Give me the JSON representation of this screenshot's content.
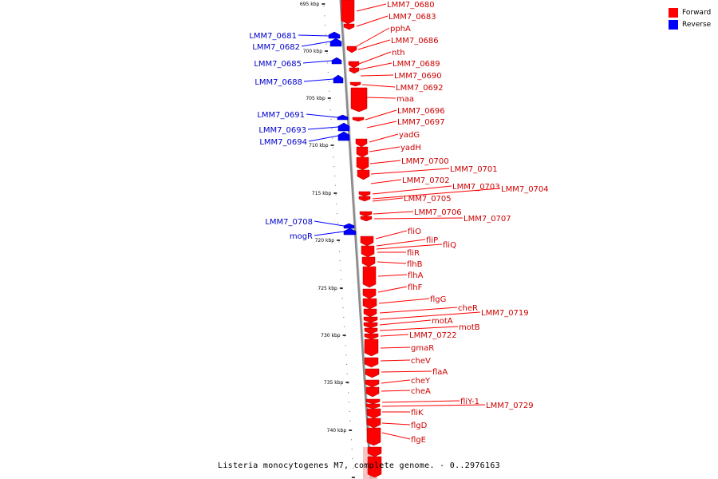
{
  "colors": {
    "forward": "#ff0000",
    "reverse": "#0000ff",
    "axis": "#999999",
    "forward_label": "#cc0000",
    "reverse_label": "#0000cc"
  },
  "legend": [
    {
      "label": "Forward",
      "color": "#ff0000"
    },
    {
      "label": "Reverse",
      "color": "#0000ff"
    }
  ],
  "caption": "Listeria monocytogenes M7, complete genome. - 0..2976163",
  "ticks": [
    "695 kbp",
    "700 kbp",
    "705 kbp",
    "710 kbp",
    "715 kbp",
    "720 kbp",
    "725 kbp",
    "730 kbp",
    "735 kbp",
    "740 kbp"
  ],
  "forward_genes": [
    "LMM7_0680",
    "LMM7_0683",
    "pphA",
    "LMM7_0686",
    "nth",
    "LMM7_0689",
    "LMM7_0690",
    "LMM7_0692",
    "maa",
    "LMM7_0696",
    "LMM7_0697",
    "yadG",
    "yadH",
    "LMM7_0700",
    "LMM7_0701",
    "LMM7_0702",
    "LMM7_0703",
    "LMM7_0704",
    "LMM7_0705",
    "LMM7_0706",
    "LMM7_0707",
    "fliO",
    "fliP",
    "fliQ",
    "fliR",
    "flhB",
    "flhA",
    "flhF",
    "flgG",
    "cheR",
    "LMM7_0719",
    "motA",
    "motB",
    "LMM7_0722",
    "gmaR",
    "cheV",
    "flaA",
    "cheY",
    "cheA",
    "fliY-1",
    "LMM7_0729",
    "fliK",
    "flgD",
    "flgE"
  ],
  "reverse_genes": [
    "LMM7_0681",
    "LMM7_0682",
    "LMM7_0685",
    "LMM7_0688",
    "LMM7_0691",
    "LMM7_0693",
    "LMM7_0694",
    "LMM7_0708",
    "mogR"
  ]
}
